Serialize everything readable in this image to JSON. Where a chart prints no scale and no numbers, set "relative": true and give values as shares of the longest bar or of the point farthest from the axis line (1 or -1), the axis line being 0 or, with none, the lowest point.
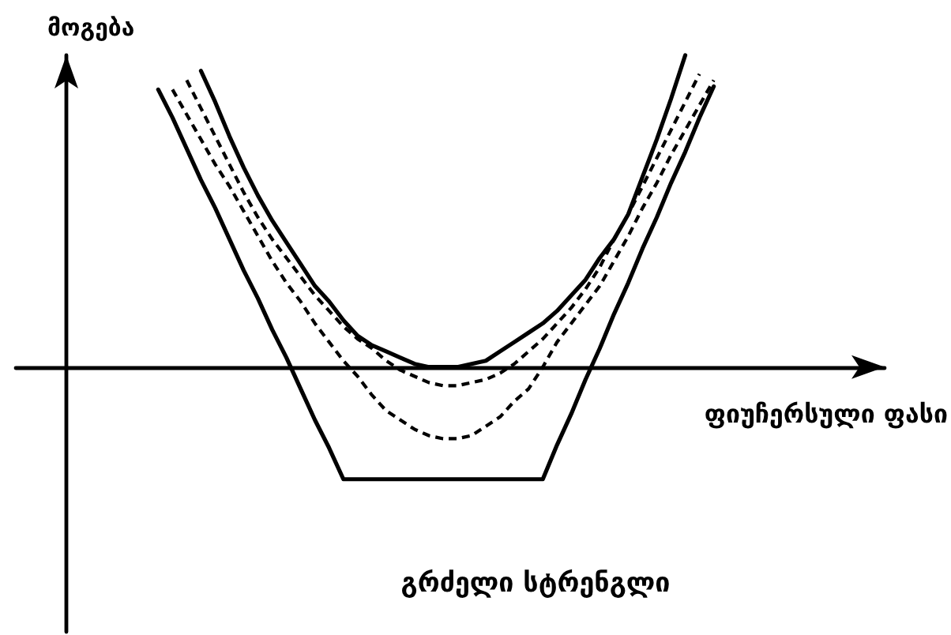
{
  "chart_data": {
    "type": "line",
    "title": "გრძელი სტრენგლი",
    "xlabel": "ფიუჩერსული ფასი",
    "ylabel": "მოგება",
    "relative": true,
    "marker": "none",
    "line_style": "solid",
    "grid": false,
    "tick_labels": false,
    "categories": [
      null,
      null,
      null,
      null,
      null,
      null,
      null,
      null,
      null,
      null,
      null,
      null,
      null,
      null,
      null,
      null,
      null,
      null,
      null,
      null,
      null,
      null,
      null,
      null,
      null,
      null,
      null,
      null,
      null,
      null,
      null,
      null,
      null,
      null,
      null,
      null,
      null,
      null,
      null,
      null,
      null,
      null,
      null,
      null,
      null,
      null,
      null,
      null,
      null,
      null,
      null,
      null,
      null,
      null,
      null,
      null,
      null,
      null,
      null,
      null,
      null,
      null
    ],
    "series": [
      {
        "color": "#000000",
        "values": [
          null,
          null,
          null,
          null,
          null,
          null,
          null,
          null,
          null,
          null,
          0.89,
          0.8,
          0.7,
          0.6,
          0.51,
          0.41,
          0.31,
          0.22,
          0.12,
          0.03,
          -0.07,
          -0.17,
          -0.26,
          -0.36,
          -0.36,
          -0.36,
          -0.36,
          -0.36,
          -0.36,
          -0.36,
          -0.36,
          -0.36,
          -0.36,
          -0.36,
          -0.36,
          -0.36,
          -0.36,
          -0.36,
          -0.25,
          -0.15,
          -0.04,
          0.06,
          0.17,
          0.27,
          0.38,
          0.48,
          0.59,
          0.69,
          0.8,
          0.9,
          null,
          null,
          null,
          null,
          null,
          null,
          null,
          null,
          null,
          null,
          null,
          null
        ]
      },
      {
        "color": "#000000",
        "line_style": "dashed",
        "values": [
          null,
          null,
          null,
          null,
          null,
          null,
          null,
          null,
          null,
          null,
          null,
          0.89,
          0.81,
          0.73,
          0.65,
          0.58,
          0.5,
          0.42,
          0.34,
          0.27,
          0.21,
          0.14,
          0.08,
          0.02,
          -0.03,
          -0.09,
          -0.14,
          -0.17,
          -0.2,
          -0.22,
          -0.23,
          -0.23,
          -0.22,
          -0.19,
          -0.16,
          -0.11,
          -0.07,
          0.0,
          0.08,
          0.14,
          0.2,
          0.26,
          0.34,
          0.42,
          0.51,
          0.59,
          0.68,
          0.76,
          0.84,
          0.92,
          null,
          null,
          null,
          null,
          null,
          null,
          null,
          null,
          null,
          null,
          null,
          null
        ]
      },
      {
        "color": "#000000",
        "line_style": "dashed",
        "values": [
          null,
          null,
          null,
          null,
          null,
          null,
          null,
          null,
          null,
          null,
          null,
          null,
          0.92,
          0.83,
          0.74,
          0.65,
          0.56,
          0.48,
          0.41,
          0.35,
          0.29,
          0.23,
          0.18,
          0.13,
          0.09,
          0.06,
          0.02,
          -0.01,
          -0.03,
          -0.05,
          -0.06,
          -0.06,
          -0.05,
          -0.04,
          -0.02,
          0.01,
          0.05,
          0.09,
          0.14,
          0.19,
          0.25,
          0.32,
          0.41,
          0.49,
          0.58,
          0.67,
          0.76,
          0.85,
          0.94,
          null,
          null,
          null,
          null,
          null,
          null,
          null,
          null,
          null,
          null,
          null,
          null,
          null
        ]
      },
      {
        "color": "#000000",
        "values": [
          null,
          null,
          null,
          null,
          null,
          null,
          null,
          null,
          null,
          null,
          null,
          null,
          null,
          0.95,
          0.85,
          0.74,
          0.64,
          0.55,
          0.47,
          0.4,
          0.33,
          0.26,
          0.21,
          0.15,
          0.1,
          0.07,
          0.05,
          0.03,
          0.01,
          0.0,
          0.0,
          0.0,
          0.01,
          0.02,
          0.05,
          0.08,
          0.11,
          0.14,
          0.18,
          0.23,
          0.28,
          0.35,
          0.41,
          0.49,
          0.61,
          0.73,
          0.86,
          1.0,
          null,
          null,
          null,
          null,
          null,
          null,
          null,
          null,
          null,
          null,
          null,
          null,
          null,
          null
        ]
      }
    ]
  }
}
